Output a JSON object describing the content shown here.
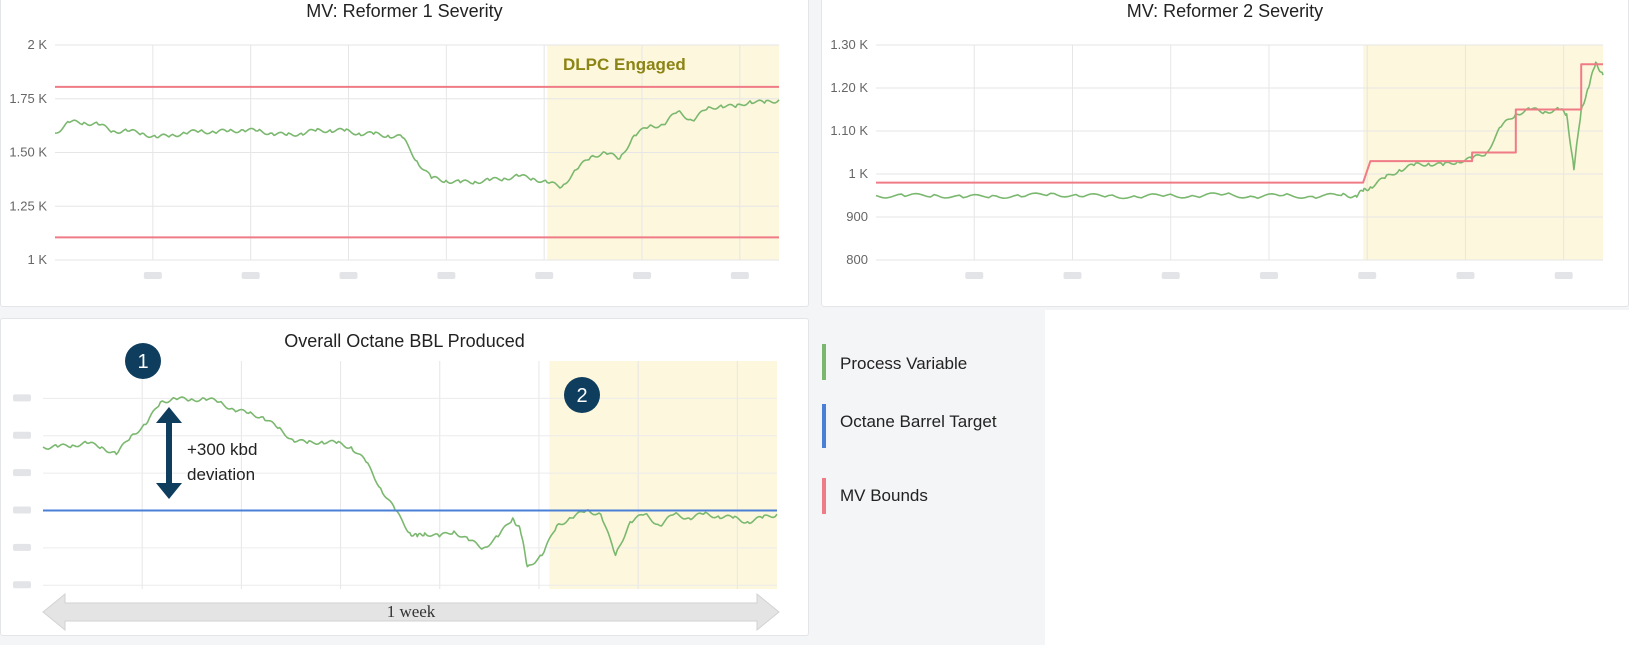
{
  "colors": {
    "process_variable": "#7bb86f",
    "octane_target": "#4a7fd8",
    "mv_bounds": "#ef7b86",
    "engaged_region": "#fdf7dd",
    "engaged_text": "#8c8414",
    "marker": "#0f3d5e",
    "arrow": "#e4e4e4"
  },
  "legend": [
    {
      "label": "Process Variable",
      "color": "#7bb86f"
    },
    {
      "label": "Octane Barrel Target",
      "color": "#4a7fd8"
    },
    {
      "label": "MV Bounds",
      "color": "#ef7b86"
    }
  ],
  "annotations": {
    "dlpc_label": "DLPC Engaged",
    "marker_1": "1",
    "marker_2": "2",
    "deviation_line1": "+300 kbd",
    "deviation_line2": "deviation",
    "week_label": "1 week"
  },
  "chart_data": [
    {
      "id": "reformer1",
      "type": "line",
      "title": "MV: Reformer 1 Severity",
      "ylim": [
        1000,
        2000
      ],
      "yticks": [
        1000,
        1250,
        1500,
        1750,
        2000
      ],
      "ytick_labels": [
        "1 K",
        "1.25 K",
        "1.50 K",
        "1.75 K",
        "2 K"
      ],
      "xlim": [
        0,
        100
      ],
      "engaged_from": 68,
      "series": [
        {
          "role": "pv",
          "x": [
            0,
            2,
            4,
            6,
            8,
            10,
            12,
            14,
            16,
            18,
            20,
            22,
            24,
            26,
            28,
            30,
            32,
            34,
            36,
            38,
            40,
            42,
            44,
            46,
            48,
            50,
            52,
            54,
            56,
            58,
            60,
            62,
            64,
            66,
            68,
            70,
            72,
            74,
            76,
            78,
            80,
            82,
            84,
            86,
            88,
            90,
            92,
            94,
            96,
            98,
            100
          ],
          "y": [
            1590,
            1640,
            1640,
            1630,
            1600,
            1600,
            1590,
            1570,
            1580,
            1590,
            1600,
            1595,
            1600,
            1605,
            1600,
            1590,
            1580,
            1590,
            1600,
            1605,
            1600,
            1590,
            1585,
            1580,
            1570,
            1460,
            1380,
            1370,
            1360,
            1365,
            1370,
            1380,
            1390,
            1380,
            1360,
            1340,
            1420,
            1480,
            1500,
            1470,
            1580,
            1620,
            1630,
            1690,
            1650,
            1700,
            1720,
            1710,
            1740,
            1730,
            1745
          ]
        },
        {
          "role": "upper_bound",
          "x": [
            0,
            100
          ],
          "y": [
            1805,
            1805
          ]
        },
        {
          "role": "lower_bound",
          "x": [
            0,
            100
          ],
          "y": [
            1105,
            1105
          ]
        }
      ]
    },
    {
      "id": "reformer2",
      "type": "line",
      "title": "MV: Reformer 2 Severity",
      "ylim": [
        800,
        1300
      ],
      "yticks": [
        800,
        900,
        1000,
        1100,
        1200,
        1300
      ],
      "ytick_labels": [
        "800",
        "900",
        "1 K",
        "1.10 K",
        "1.20 K",
        "1.30 K"
      ],
      "xlim": [
        0,
        100
      ],
      "engaged_from": 67,
      "series": [
        {
          "role": "pv",
          "x": [
            0,
            4,
            8,
            12,
            16,
            20,
            24,
            28,
            32,
            36,
            40,
            44,
            48,
            52,
            56,
            60,
            64,
            66,
            67,
            68,
            70,
            72,
            74,
            76,
            78,
            80,
            82,
            84,
            86,
            88,
            90,
            92,
            94,
            95,
            96,
            97,
            98,
            99,
            100
          ],
          "y": [
            950,
            948,
            952,
            945,
            950,
            947,
            955,
            948,
            950,
            946,
            951,
            948,
            953,
            947,
            950,
            948,
            950,
            950,
            960,
            970,
            990,
            1010,
            1020,
            1025,
            1020,
            1030,
            1035,
            1050,
            1110,
            1140,
            1150,
            1145,
            1150,
            1140,
            1010,
            1150,
            1200,
            1260,
            1230
          ]
        },
        {
          "role": "upper_bound",
          "x": [
            0,
            67,
            68,
            82,
            82,
            88,
            88,
            97,
            97,
            100
          ],
          "y": [
            980,
            980,
            1030,
            1030,
            1050,
            1050,
            1150,
            1150,
            1255,
            1255
          ]
        }
      ]
    },
    {
      "id": "octane",
      "type": "line",
      "title": "Overall Octane BBL Produced",
      "ylim": [
        -210,
        400
      ],
      "xlim": [
        0,
        100
      ],
      "engaged_from": 69,
      "series": [
        {
          "role": "pv",
          "x": [
            0,
            2,
            4,
            6,
            8,
            10,
            12,
            14,
            16,
            18,
            20,
            22,
            24,
            26,
            28,
            30,
            32,
            34,
            36,
            38,
            40,
            42,
            44,
            46,
            48,
            50,
            51,
            52,
            54,
            56,
            58,
            60,
            62,
            64,
            65,
            66,
            68,
            70,
            72,
            74,
            76,
            78,
            80,
            82,
            84,
            86,
            88,
            90,
            92,
            94,
            96,
            98,
            100
          ],
          "y": [
            170,
            170,
            175,
            180,
            170,
            150,
            200,
            230,
            290,
            300,
            295,
            300,
            290,
            270,
            260,
            250,
            220,
            190,
            180,
            185,
            180,
            170,
            130,
            60,
            0,
            -60,
            -70,
            -60,
            -70,
            -55,
            -80,
            -100,
            -70,
            -20,
            -50,
            -150,
            -120,
            -40,
            -20,
            0,
            -10,
            -120,
            -30,
            -10,
            -40,
            -10,
            -20,
            -10,
            -15,
            -20,
            -30,
            -20,
            -10
          ]
        },
        {
          "role": "target",
          "x": [
            0,
            100
          ],
          "y": [
            0,
            0
          ]
        }
      ]
    }
  ]
}
